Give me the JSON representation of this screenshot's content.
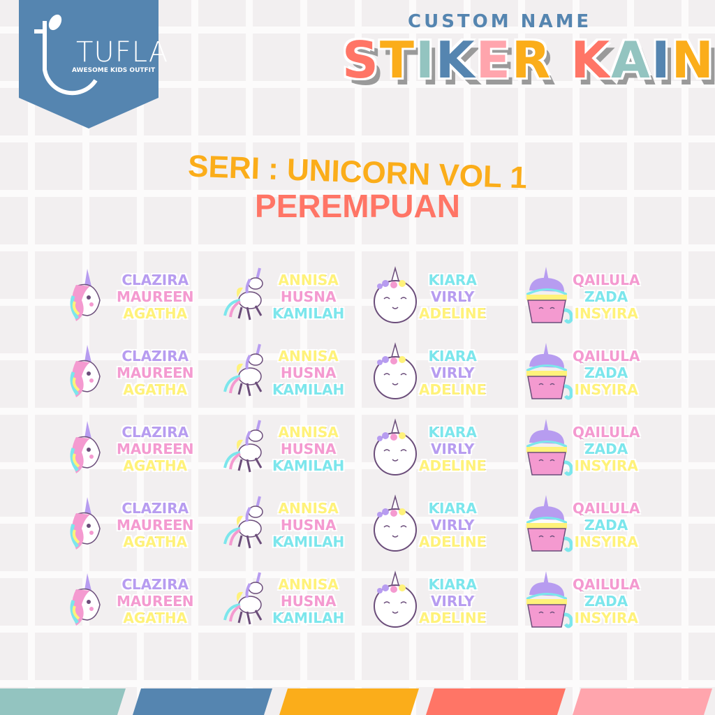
{
  "brand": {
    "name": "TUFLA",
    "tagline": "AWESOME KIDS OUTFIT",
    "color": "#5585b0"
  },
  "header": {
    "subtitle": "CUSTOM NAME",
    "title_letters": [
      {
        "ch": "S",
        "color": "#ff7566"
      },
      {
        "ch": "T",
        "color": "#fbad1a"
      },
      {
        "ch": "I",
        "color": "#93c4c0"
      },
      {
        "ch": "K",
        "color": "#5585b0"
      },
      {
        "ch": "E",
        "color": "#ffa5ad"
      },
      {
        "ch": "R",
        "color": "#fbad1a"
      },
      {
        "ch": " ",
        "color": "#fff"
      },
      {
        "ch": "K",
        "color": "#ff7566"
      },
      {
        "ch": "A",
        "color": "#93c4c0"
      },
      {
        "ch": "I",
        "color": "#5585b0"
      },
      {
        "ch": "N",
        "color": "#fbad1a"
      }
    ]
  },
  "series": {
    "line1": "SERI : UNICORN VOL 1",
    "line2": "PEREMPUAN"
  },
  "stickers": [
    {
      "icon": "unicorn-head-icon",
      "names": [
        "CLAZIRA",
        "MAUREEN",
        "AGATHA"
      ],
      "colors": [
        "#b79cf0",
        "#f49ad0",
        "#fff27a"
      ]
    },
    {
      "icon": "pegasus-icon",
      "names": [
        "ANNISA",
        "HUSNA",
        "KAMILAH"
      ],
      "colors": [
        "#fff27a",
        "#f49ad0",
        "#7ce6ec"
      ]
    },
    {
      "icon": "unicorn-face-icon",
      "names": [
        "KIARA",
        "VIRLY",
        "ADELINE"
      ],
      "colors": [
        "#7ce6ec",
        "#b79cf0",
        "#fff27a"
      ]
    },
    {
      "icon": "unicorn-cupcake-icon",
      "names": [
        "QAILULA",
        "ZADA",
        "INSYIRA"
      ],
      "colors": [
        "#f49ad0",
        "#7ce6ec",
        "#fff27a"
      ]
    }
  ],
  "rows": 5,
  "stripe_colors": [
    "#93c4c0",
    "#5585b0",
    "#fbad1a",
    "#ff7566",
    "#ffa5ad"
  ]
}
